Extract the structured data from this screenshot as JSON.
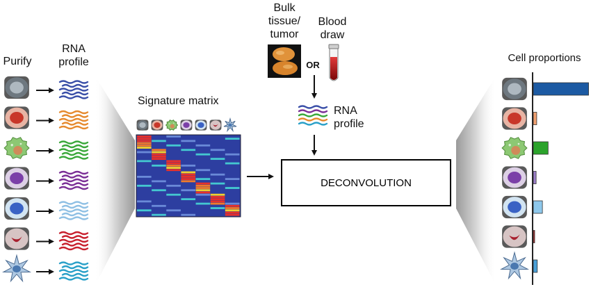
{
  "left": {
    "purify_label": "Purify",
    "rna_profile_label_line1": "RNA",
    "rna_profile_label_line2": "profile"
  },
  "signature": {
    "title": "Signature matrix"
  },
  "input": {
    "bulk_line1": "Bulk",
    "bulk_line2": "tissue/",
    "bulk_line3": "tumor",
    "or_label": "OR",
    "blood_line1": "Blood",
    "blood_line2": "draw"
  },
  "mixture": {
    "rna_line1": "RNA",
    "rna_line2": "profile"
  },
  "process": {
    "label": "DECONVOLUTION"
  },
  "output": {
    "title": "Cell proportions",
    "proportions": [
      0.97,
      0.06,
      0.26,
      0.05,
      0.16,
      0.02,
      0.07
    ]
  },
  "cells": [
    {
      "name": "gray-cell",
      "body": "#6e7880",
      "nucleus": "#aeb8c0",
      "wave": "#3a4fa8"
    },
    {
      "name": "red-cell",
      "body": "#e8b4a4",
      "nucleus": "#c8372a",
      "wave": "#e68a2e"
    },
    {
      "name": "green-cell",
      "body": "#8cc873",
      "nucleus": "#d08a5a",
      "wave": "#3aa83a"
    },
    {
      "name": "purple-cell",
      "body": "#ddd0e6",
      "nucleus": "#7b3fa8",
      "wave": "#7b2f96"
    },
    {
      "name": "blue-cell",
      "body": "#d2e4f2",
      "nucleus": "#3a62c4",
      "wave": "#8fc0e4"
    },
    {
      "name": "crimson-cell",
      "body": "#d7c4c4",
      "nucleus": "#a8202e",
      "wave": "#c8202e"
    },
    {
      "name": "dendritic-cell",
      "body": "#aec8e2",
      "nucleus": "#4a78b0",
      "wave": "#29a0c8"
    }
  ],
  "bar_colors": [
    "#1c5aa3",
    "#f0a070",
    "#2ba32b",
    "#9b7ec8",
    "#8ec8ec",
    "#b02f2f",
    "#4aa0d8"
  ]
}
